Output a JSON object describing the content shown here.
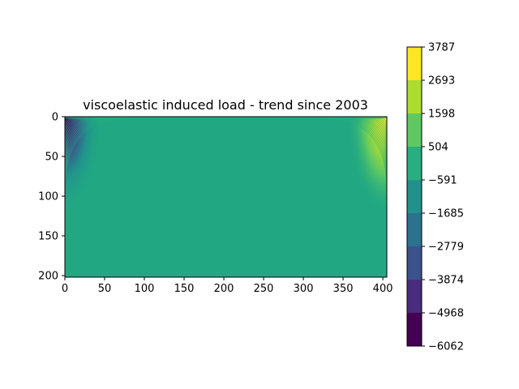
{
  "chart_data": {
    "type": "heatmap",
    "title": "viscoelastic induced load - trend since 2003",
    "xlabel": "",
    "ylabel": "",
    "xlim": [
      0,
      405
    ],
    "ylim": [
      202,
      0
    ],
    "x_ticks": [
      0,
      50,
      100,
      150,
      200,
      250,
      300,
      350,
      400
    ],
    "y_ticks": [
      0,
      50,
      100,
      150,
      200
    ],
    "colorbar": {
      "levels": [
        -6062,
        -4968,
        -3874,
        -2779,
        -1685,
        -591,
        504,
        1598,
        2693,
        3787
      ],
      "tick_labels": [
        "−6062",
        "−4968",
        "−3874",
        "−2779",
        "−1685",
        "−591",
        "504",
        "1598",
        "2693",
        "3787"
      ],
      "colors": [
        "#440154",
        "#472d7b",
        "#3b528b",
        "#2c728e",
        "#21918c",
        "#28ae80",
        "#5ec962",
        "#addc30",
        "#fde725"
      ]
    },
    "dominant_level_color": "#21a883",
    "grid": false
  }
}
